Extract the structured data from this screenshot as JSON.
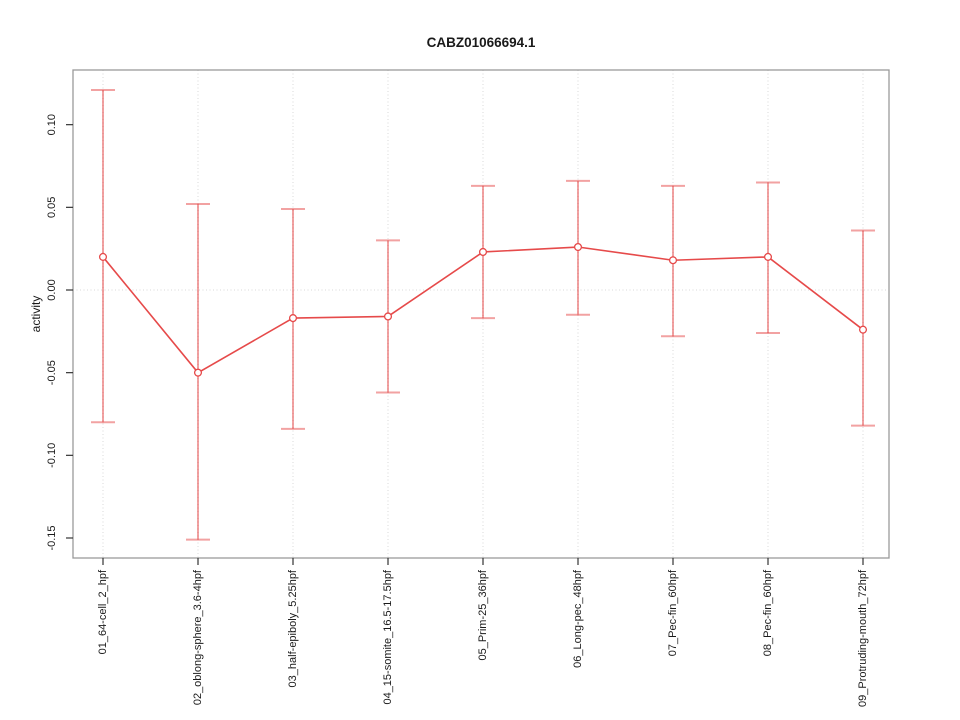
{
  "title": "CABZ01066694.1",
  "chart_data": {
    "type": "line",
    "title": "CABZ01066694.1",
    "xlabel": "",
    "ylabel": "activity",
    "categories": [
      "01_64-cell_2_hpf",
      "02_oblong-sphere_3.6-4hpf",
      "03_half-epiboly_5.25hpf",
      "04_15-somite_16.5-17.5hpf",
      "05_Prim-25_36hpf",
      "06_Long-pec_48hpf",
      "07_Pec-fin_60hpf",
      "08_Pec-fin_60hpf",
      "09_Protruding-mouth_72hpf"
    ],
    "series": [
      {
        "name": "activity",
        "values": [
          0.02,
          -0.05,
          -0.017,
          -0.016,
          0.023,
          0.026,
          0.018,
          0.02,
          -0.024
        ],
        "error_upper": [
          0.121,
          0.052,
          0.049,
          0.03,
          0.063,
          0.066,
          0.063,
          0.065,
          0.036
        ],
        "error_lower": [
          -0.08,
          -0.151,
          -0.084,
          -0.062,
          -0.017,
          -0.015,
          -0.028,
          -0.026,
          -0.082
        ]
      }
    ],
    "y_ticks": [
      {
        "value": -0.15,
        "label": "-0.15"
      },
      {
        "value": -0.1,
        "label": "-0.10"
      },
      {
        "value": -0.05,
        "label": "-0.05"
      },
      {
        "value": 0.0,
        "label": "0.00"
      },
      {
        "value": 0.05,
        "label": "0.05"
      },
      {
        "value": 0.1,
        "label": "0.10"
      }
    ],
    "ylim": [
      -0.162,
      0.133
    ],
    "grid": "vertical-dotted",
    "zero_line": true,
    "legend_position": "none",
    "marker": "open-circle",
    "colors": {
      "line": "#e64a4a",
      "marker": "#e64a4a",
      "marker_fill": "#ffffff",
      "error_bar": "rgba(230,70,70,0.5)",
      "grid": "#d8d8d8",
      "frame": "#9a9a9a",
      "tick": "#333333",
      "text": "#1a1a1a"
    }
  }
}
